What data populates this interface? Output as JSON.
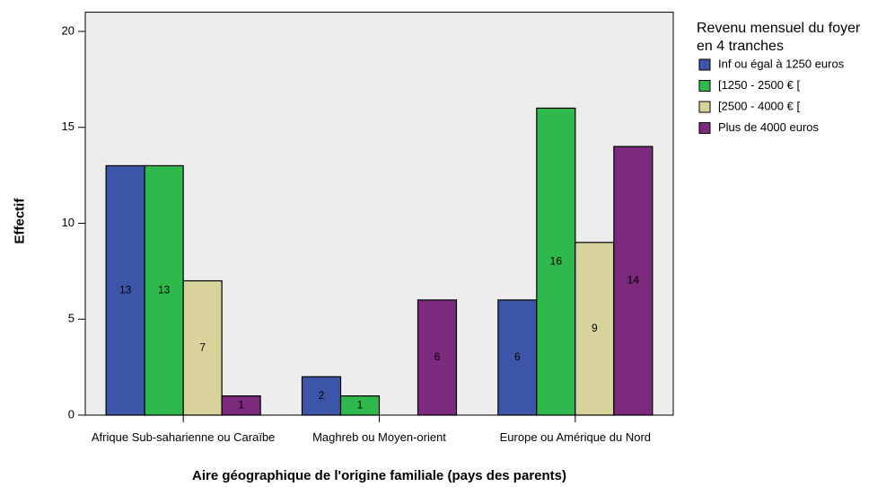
{
  "chart_data": {
    "type": "bar",
    "x_label": "Aire géographique de l'origine familiale (pays des parents)",
    "y_label": "Effectif",
    "legend_title": "Revenu mensuel du foyer en 4 tranches",
    "legend_position": "right",
    "categories": [
      "Afrique Sub-saharienne ou Caraïbe",
      "Maghreb ou Moyen-orient",
      "Europe ou Amérique du Nord"
    ],
    "series": [
      {
        "name": "Inf ou égal à 1250 euros",
        "color": "#3d55a8",
        "values": [
          13,
          2,
          6
        ]
      },
      {
        "name": "[1250 - 2500 € [",
        "color": "#2fb84b",
        "values": [
          13,
          1,
          16
        ]
      },
      {
        "name": "[2500 - 4000 € [",
        "color": "#d8d29d",
        "values": [
          7,
          null,
          9
        ]
      },
      {
        "name": "Plus de 4000 euros",
        "color": "#7b2a7d",
        "values": [
          1,
          6,
          14
        ]
      }
    ],
    "ylim": [
      0,
      21
    ],
    "yticks": [
      0,
      5,
      10,
      15,
      20
    ],
    "grid": false
  }
}
